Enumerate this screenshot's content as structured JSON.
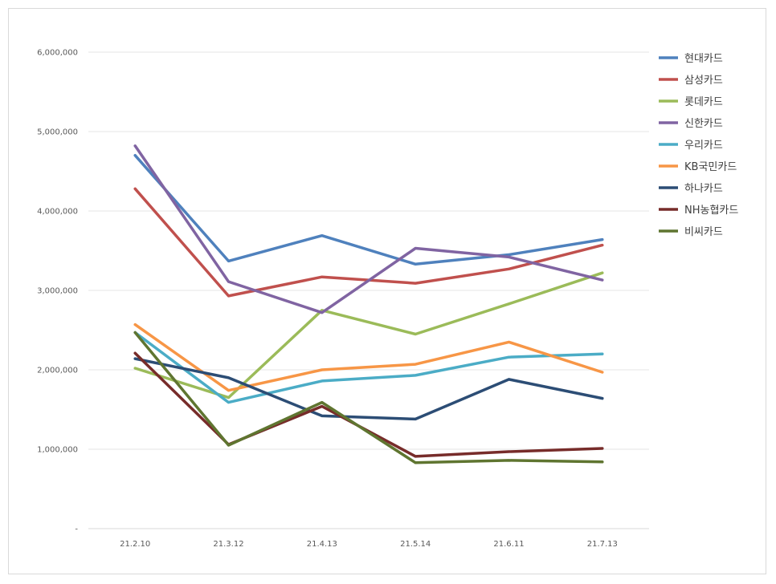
{
  "chart_data": {
    "type": "line",
    "title": "",
    "xlabel": "",
    "ylabel": "",
    "categories": [
      "21.2.10",
      "21.3.12",
      "21.4.13",
      "21.5.14",
      "21.6.11",
      "21.7.13"
    ],
    "y_ticks": [
      "-",
      "1,000,000",
      "2,000,000",
      "3,000,000",
      "4,000,000",
      "5,000,000",
      "6,000,000"
    ],
    "ylim": [
      0,
      6000000
    ],
    "grid": true,
    "legend_position": "right",
    "series": [
      {
        "name": "현대카드",
        "color": "#4f81bd",
        "values": [
          4700000,
          3370000,
          3690000,
          3330000,
          3450000,
          3640000
        ]
      },
      {
        "name": "삼성카드",
        "color": "#c0504d",
        "values": [
          4280000,
          2930000,
          3170000,
          3090000,
          3270000,
          3570000
        ]
      },
      {
        "name": "롯데카드",
        "color": "#9bbb59",
        "values": [
          2020000,
          1650000,
          2750000,
          2450000,
          2830000,
          3220000
        ]
      },
      {
        "name": "신한카드",
        "color": "#8064a2",
        "values": [
          4820000,
          3110000,
          2720000,
          3530000,
          3420000,
          3130000
        ]
      },
      {
        "name": "우리카드",
        "color": "#4bacc6",
        "values": [
          2470000,
          1590000,
          1860000,
          1930000,
          2160000,
          2200000
        ]
      },
      {
        "name": "KB국민카드",
        "color": "#f79646",
        "values": [
          2570000,
          1740000,
          2000000,
          2070000,
          2350000,
          1970000
        ]
      },
      {
        "name": "하나카드",
        "color": "#2c4d75",
        "values": [
          2140000,
          1900000,
          1420000,
          1380000,
          1880000,
          1640000
        ]
      },
      {
        "name": "NH농협카드",
        "color": "#772c2a",
        "values": [
          2210000,
          1060000,
          1540000,
          910000,
          970000,
          1010000
        ]
      },
      {
        "name": "비씨카드",
        "color": "#5f7530",
        "values": [
          2470000,
          1050000,
          1590000,
          830000,
          860000,
          840000
        ]
      }
    ]
  }
}
